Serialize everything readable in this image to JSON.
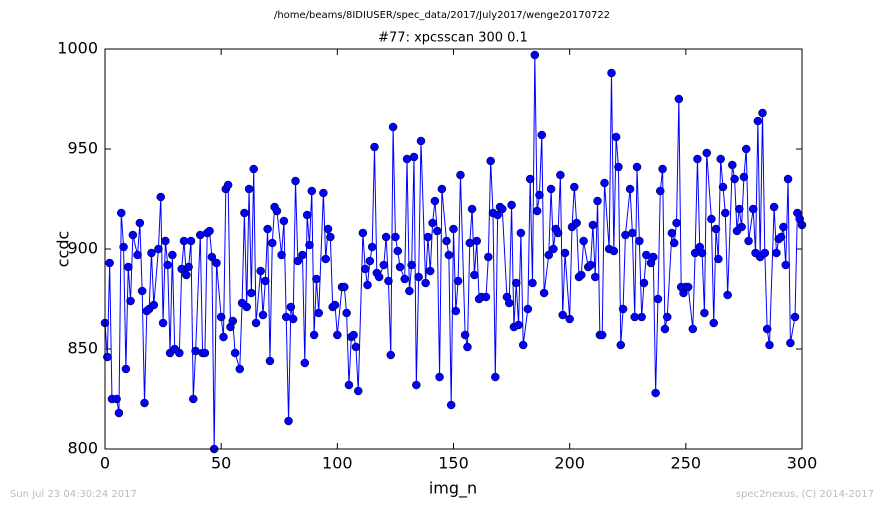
{
  "chart_data": {
    "type": "line",
    "title": "/home/beams/8IDIUSER/spec_data/2017/July2017/wenge20170722",
    "subtitle": "#77: xpcsscan 300 0.1",
    "x_label": "img_n",
    "y_label": "ccdc",
    "footer_left": "Sun Jul 23 04:30:24 2017",
    "footer_right": "spec2nexus, (C) 2014-2017",
    "color": "#0000ff",
    "marker": "circle",
    "xlim": [
      0,
      300
    ],
    "xticks": [
      0,
      50,
      100,
      150,
      200,
      250,
      300
    ],
    "ylim": [
      800,
      1000
    ],
    "yticks": [
      800,
      850,
      900,
      950,
      1000
    ],
    "x": [
      0,
      1,
      2,
      3,
      5,
      6,
      7,
      8,
      9,
      10,
      11,
      12,
      14,
      15,
      16,
      17,
      18,
      19,
      20,
      21,
      23,
      24,
      25,
      26,
      27,
      28,
      29,
      30,
      32,
      33,
      34,
      35,
      36,
      37,
      38,
      39,
      41,
      42,
      43,
      44,
      45,
      46,
      47,
      48,
      50,
      51,
      52,
      53,
      54,
      55,
      56,
      58,
      59,
      60,
      61,
      62,
      63,
      64,
      65,
      67,
      68,
      69,
      70,
      71,
      72,
      73,
      74,
      76,
      77,
      78,
      79,
      80,
      81,
      82,
      83,
      85,
      86,
      87,
      88,
      89,
      90,
      91,
      92,
      94,
      95,
      96,
      97,
      98,
      99,
      100,
      102,
      103,
      104,
      105,
      106,
      107,
      108,
      109,
      111,
      112,
      113,
      114,
      115,
      116,
      117,
      118,
      120,
      121,
      122,
      123,
      124,
      125,
      126,
      127,
      129,
      130,
      131,
      132,
      133,
      134,
      135,
      136,
      138,
      139,
      140,
      141,
      142,
      143,
      144,
      145,
      147,
      148,
      149,
      150,
      151,
      152,
      153,
      155,
      156,
      157,
      158,
      159,
      160,
      161,
      162,
      164,
      165,
      166,
      167,
      168,
      169,
      170,
      171,
      173,
      174,
      175,
      176,
      177,
      178,
      179,
      180,
      182,
      183,
      184,
      185,
      186,
      187,
      188,
      189,
      191,
      192,
      193,
      194,
      195,
      196,
      197,
      198,
      200,
      201,
      202,
      203,
      204,
      205,
      206,
      208,
      209,
      210,
      211,
      212,
      213,
      214,
      215,
      217,
      218,
      219,
      220,
      221,
      222,
      223,
      224,
      226,
      227,
      228,
      229,
      230,
      231,
      232,
      233,
      235,
      236,
      237,
      238,
      239,
      240,
      241,
      242,
      244,
      245,
      246,
      247,
      248,
      249,
      250,
      251,
      253,
      254,
      255,
      256,
      257,
      258,
      259,
      261,
      262,
      263,
      264,
      265,
      266,
      267,
      268,
      270,
      271,
      272,
      273,
      274,
      275,
      276,
      277,
      279,
      280,
      281,
      282,
      283,
      284,
      285,
      286,
      288,
      289,
      290,
      291,
      292,
      293,
      294,
      295,
      297,
      298,
      299,
      300
    ],
    "values": [
      863,
      846,
      893,
      825,
      825,
      818,
      918,
      901,
      840,
      891,
      874,
      907,
      897,
      913,
      879,
      823,
      869,
      870,
      898,
      872,
      900,
      926,
      863,
      904,
      892,
      848,
      897,
      850,
      848,
      890,
      904,
      887,
      891,
      904,
      825,
      849,
      907,
      848,
      848,
      908,
      909,
      896,
      800,
      893,
      866,
      856,
      930,
      932,
      861,
      864,
      848,
      840,
      873,
      918,
      871,
      930,
      878,
      940,
      863,
      889,
      867,
      884,
      910,
      844,
      903,
      921,
      919,
      897,
      914,
      866,
      814,
      871,
      865,
      934,
      894,
      897,
      843,
      917,
      902,
      929,
      857,
      885,
      868,
      928,
      895,
      910,
      906,
      871,
      872,
      857,
      881,
      881,
      868,
      832,
      856,
      857,
      851,
      829,
      908,
      890,
      882,
      894,
      901,
      951,
      888,
      886,
      892,
      906,
      884,
      847,
      961,
      906,
      899,
      891,
      885,
      945,
      879,
      892,
      946,
      832,
      886,
      954,
      883,
      906,
      889,
      913,
      924,
      909,
      836,
      930,
      904,
      897,
      822,
      910,
      869,
      884,
      937,
      857,
      851,
      903,
      920,
      887,
      904,
      875,
      876,
      876,
      896,
      944,
      918,
      836,
      917,
      921,
      920,
      876,
      873,
      922,
      861,
      883,
      862,
      908,
      852,
      870,
      935,
      883,
      997,
      919,
      927,
      957,
      878,
      897,
      930,
      900,
      910,
      908,
      937,
      867,
      898,
      865,
      911,
      931,
      913,
      886,
      887,
      904,
      891,
      892,
      912,
      886,
      924,
      857,
      857,
      933,
      900,
      988,
      899,
      956,
      941,
      852,
      870,
      907,
      930,
      908,
      866,
      941,
      904,
      866,
      883,
      897,
      893,
      896,
      828,
      875,
      929,
      940,
      860,
      866,
      908,
      903,
      913,
      975,
      881,
      878,
      881,
      881,
      860,
      898,
      945,
      901,
      898,
      868,
      948,
      915,
      863,
      910,
      895,
      945,
      931,
      918,
      877,
      942,
      935,
      909,
      920,
      911,
      936,
      950,
      904,
      920,
      898,
      964,
      896,
      968,
      898,
      860,
      852,
      921,
      898,
      905,
      906,
      911,
      892,
      935,
      853,
      866,
      918,
      915,
      912
    ]
  }
}
